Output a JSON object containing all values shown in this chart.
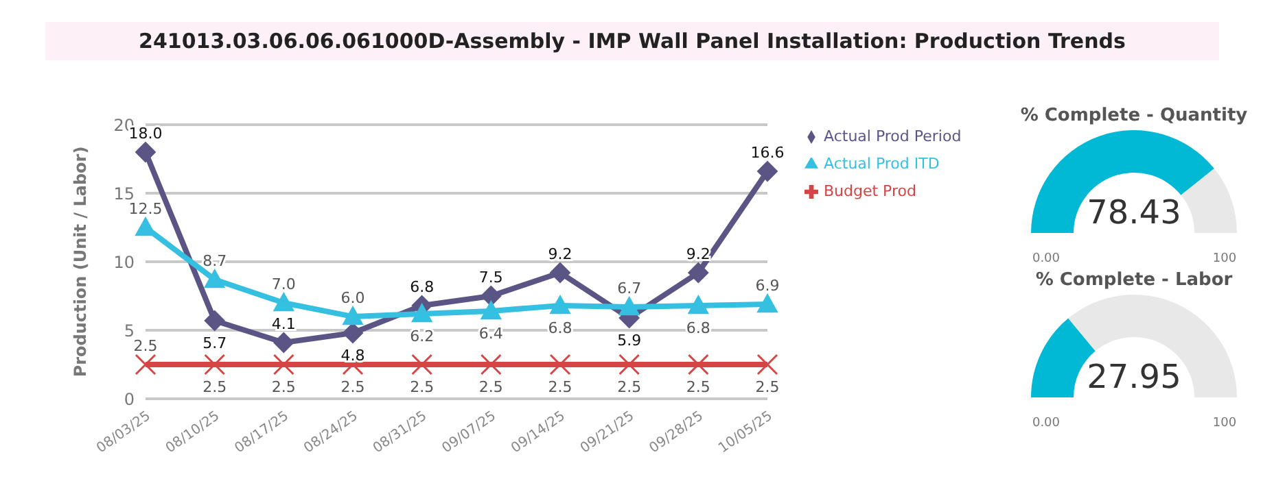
{
  "chart_data": [
    {
      "type": "line",
      "title": "241013.03.06.06.061000D-Assembly - IMP Wall Panel Installation: Production Trends",
      "ylabel": "Production (Unit / Labor)",
      "categories": [
        "08/03/25",
        "08/10/25",
        "08/17/25",
        "08/24/25",
        "08/31/25",
        "09/07/25",
        "09/14/25",
        "09/21/25",
        "09/28/25",
        "10/05/25"
      ],
      "series": [
        {
          "name": "Actual Prod Period",
          "color": "#5b5585",
          "marker": "diamond",
          "values": [
            18.0,
            5.7,
            4.1,
            4.8,
            6.8,
            7.5,
            9.2,
            5.9,
            9.2,
            16.6
          ],
          "value_labels": [
            "18.0",
            "5.7",
            "4.1",
            "4.8",
            "6.8",
            "7.5",
            "9.2",
            "5.9",
            "9.2",
            "16.6"
          ]
        },
        {
          "name": "Actual Prod ITD",
          "color": "#35bfe0",
          "marker": "triangle",
          "values": [
            12.5,
            8.7,
            7.0,
            6.0,
            6.2,
            6.4,
            6.8,
            6.7,
            6.8,
            6.9
          ],
          "value_labels": [
            "12.5",
            "8.7",
            "7.0",
            "6.0",
            "6.2",
            "6.4",
            "6.8",
            "6.7",
            "6.8",
            "6.9"
          ]
        },
        {
          "name": "Budget Prod",
          "color": "#d64545",
          "marker": "cross",
          "values": [
            2.5,
            2.5,
            2.5,
            2.5,
            2.5,
            2.5,
            2.5,
            2.5,
            2.5,
            2.5
          ],
          "value_labels": [
            "2.5",
            "2.5",
            "2.5",
            "2.5",
            "2.5",
            "2.5",
            "2.5",
            "2.5",
            "2.5",
            "2.5"
          ]
        }
      ],
      "ylim": [
        0,
        20
      ],
      "yticks": [
        0,
        5,
        10,
        15,
        20
      ],
      "grid": "y",
      "legend": "top right"
    },
    {
      "type": "donut",
      "title": "% Complete - Quantity",
      "categories": [
        null,
        null
      ],
      "values": [
        78.43,
        21.57
      ],
      "colors": [
        "#01b8d5",
        "#e8e8e8"
      ],
      "annotations": [
        "78.43",
        "0.00",
        "100"
      ]
    },
    {
      "type": "donut",
      "title": "% Complete - Labor",
      "categories": [
        null,
        null
      ],
      "values": [
        27.95,
        72.05
      ],
      "colors": [
        "#01b8d5",
        "#e8e8e8"
      ],
      "annotations": [
        "27.95",
        "0.00",
        "100"
      ]
    }
  ]
}
